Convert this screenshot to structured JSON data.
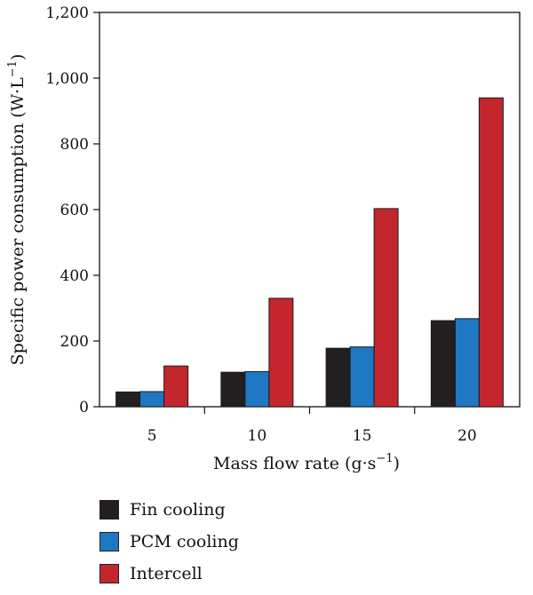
{
  "chart_data": {
    "type": "bar",
    "categories": [
      "5",
      "10",
      "15",
      "20"
    ],
    "series": [
      {
        "name": "Fin cooling",
        "values": [
          45,
          105,
          178,
          262
        ],
        "color": "#231f20"
      },
      {
        "name": "PCM cooling",
        "values": [
          46,
          107,
          182,
          268
        ],
        "color": "#1f77c4"
      },
      {
        "name": "Intercell",
        "values": [
          124,
          330,
          603,
          940
        ],
        "color": "#c4262e"
      }
    ],
    "xlabel": "Mass flow rate (g·s",
    "xlabel_sup": "−1",
    "xlabel_suffix": ")",
    "ylabel": "Specific power consumption (W·L",
    "ylabel_sup": "−1",
    "ylabel_suffix": ")",
    "ylim": [
      0,
      1200
    ],
    "yticks": [
      0,
      200,
      400,
      600,
      800,
      1000,
      1200
    ],
    "ytick_labels": [
      "0",
      "200",
      "400",
      "600",
      "800",
      "1,000",
      "1,200"
    ],
    "grid": false,
    "legend_position": "bottom-left"
  }
}
